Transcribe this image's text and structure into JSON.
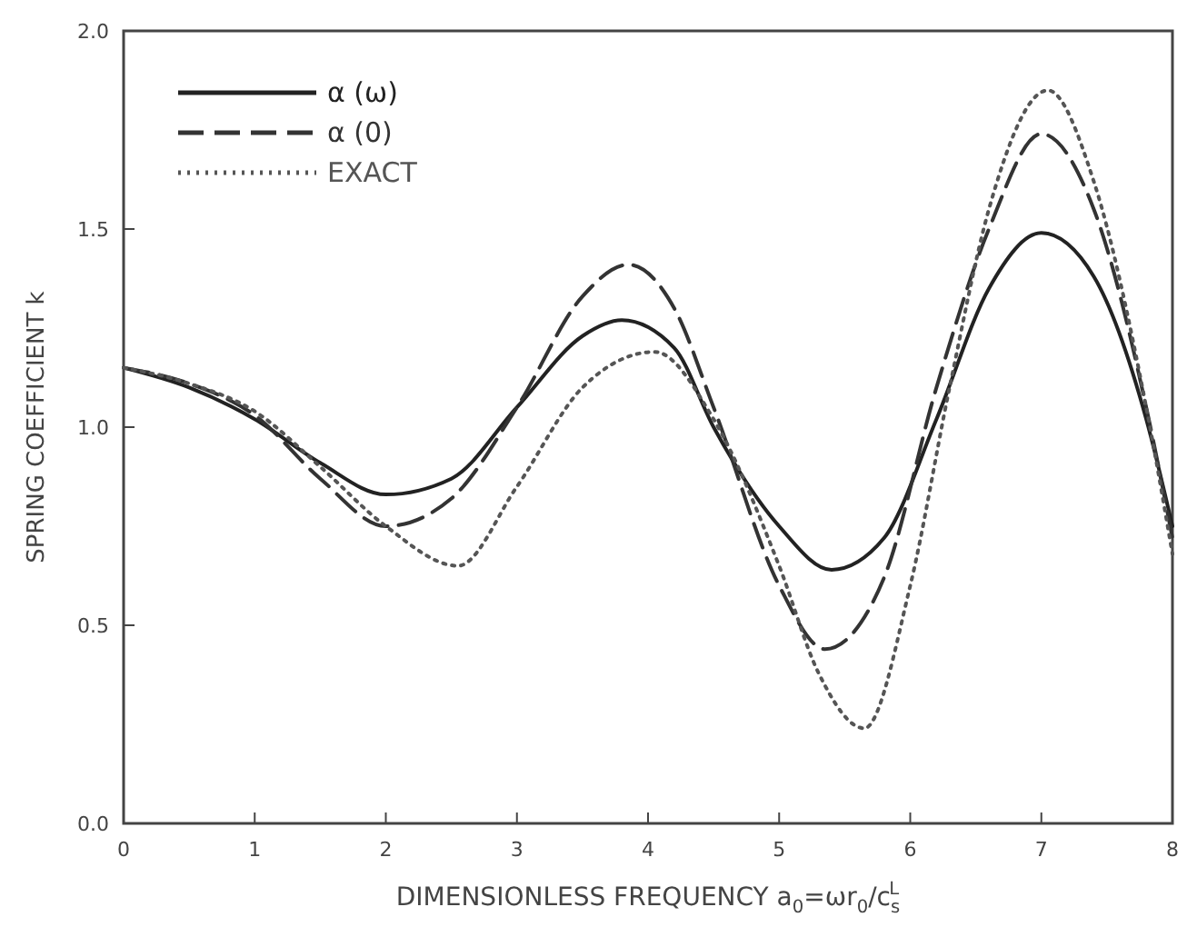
{
  "chart_data": {
    "type": "line",
    "xlabel": "DIMENSIONLESS FREQUENCY a$_{0}$=ωr$_{0}$/c$_{s}$$^{L}$",
    "ylabel": "SPRING COEFFICIENT k",
    "xlim": [
      0,
      8
    ],
    "xticks": [
      0,
      1,
      2,
      3,
      4,
      5,
      6,
      7,
      8
    ],
    "ylim": [
      0,
      2
    ],
    "yticks": [
      {
        "value": 0,
        "label": "0.0"
      },
      0.5,
      {
        "value": 1,
        "label": "1.0"
      },
      1.5,
      {
        "value": 2,
        "label": "2.0"
      }
    ],
    "grid": false,
    "legend": "top left",
    "series": [
      {
        "name": "α (ω)",
        "color": "#222222",
        "line_style": "solid",
        "x": [
          0,
          0.5,
          1,
          1.5,
          2,
          2.5,
          3,
          3.5,
          3.8,
          4.2,
          4.5,
          5,
          5.4,
          5.8,
          6.2,
          6.6,
          7,
          7.4,
          7.8,
          8
        ],
        "values": [
          1.15,
          1.1,
          1.02,
          0.91,
          0.83,
          0.87,
          1.05,
          1.23,
          1.27,
          1.2,
          1.0,
          0.75,
          0.64,
          0.72,
          1.02,
          1.35,
          1.49,
          1.38,
          1.02,
          0.75
        ]
      },
      {
        "name": "α (0)",
        "color": "#333333",
        "line_style": "dashed",
        "x": [
          0,
          0.5,
          1,
          1.5,
          2,
          2.5,
          3,
          3.5,
          3.85,
          4.2,
          4.5,
          5,
          5.35,
          5.8,
          6.2,
          6.6,
          7,
          7.4,
          7.8,
          8
        ],
        "values": [
          1.15,
          1.11,
          1.03,
          0.87,
          0.75,
          0.82,
          1.05,
          1.33,
          1.41,
          1.3,
          1.05,
          0.6,
          0.44,
          0.62,
          1.1,
          1.5,
          1.74,
          1.55,
          1.05,
          0.72
        ]
      },
      {
        "name": "EXACT",
        "color": "#555555",
        "line_style": "dotted",
        "x": [
          0,
          0.5,
          1,
          1.5,
          2,
          2.55,
          3,
          3.5,
          4.05,
          4.5,
          5,
          5.3,
          5.65,
          6,
          6.3,
          6.6,
          7.05,
          7.4,
          7.8,
          8
        ],
        "values": [
          1.15,
          1.11,
          1.04,
          0.9,
          0.75,
          0.65,
          0.85,
          1.1,
          1.19,
          1.02,
          0.65,
          0.38,
          0.24,
          0.6,
          1.1,
          1.55,
          1.85,
          1.62,
          1.05,
          0.68
        ]
      }
    ]
  }
}
